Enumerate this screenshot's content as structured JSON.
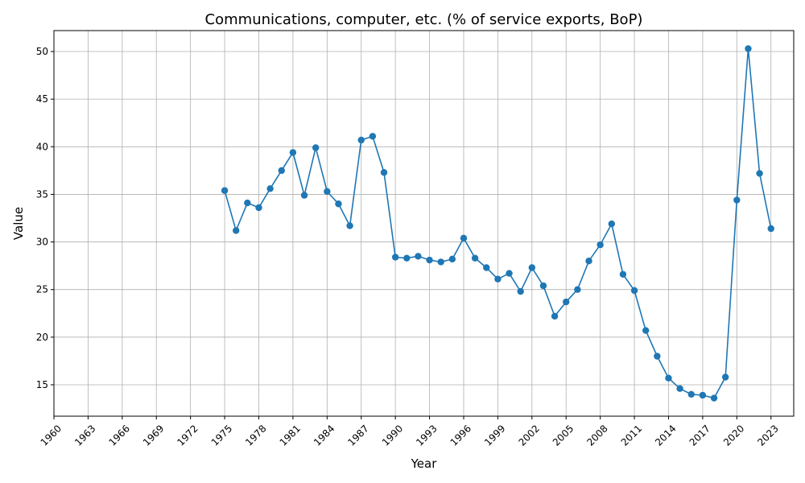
{
  "chart_data": {
    "type": "line",
    "title": "Communications, computer, etc. (% of service exports, BoP)",
    "xlabel": "Year",
    "ylabel": "Value",
    "xlim": [
      1960,
      2025
    ],
    "ylim": [
      11.7,
      52.2
    ],
    "x_ticks": [
      "1960",
      "1963",
      "1966",
      "1969",
      "1972",
      "1975",
      "1978",
      "1981",
      "1984",
      "1987",
      "1990",
      "1993",
      "1996",
      "1999",
      "2002",
      "2005",
      "2008",
      "2011",
      "2014",
      "2017",
      "2020",
      "2023"
    ],
    "y_ticks": [
      "15",
      "20",
      "25",
      "30",
      "35",
      "40",
      "45",
      "50"
    ],
    "grid": true,
    "color": "#1f77b4",
    "marker": "circle",
    "series": [
      {
        "x": [
          1975,
          1976,
          1977,
          1978,
          1979,
          1980,
          1981,
          1982,
          1983,
          1984,
          1985,
          1986,
          1987,
          1988,
          1989,
          1990,
          1991,
          1992,
          1993,
          1994,
          1995,
          1996,
          1997,
          1998,
          1999,
          2000,
          2001,
          2002,
          2003,
          2004,
          2005,
          2006,
          2007,
          2008,
          2009,
          2010,
          2011,
          2012,
          2013,
          2014,
          2015,
          2016,
          2017,
          2018,
          2019,
          2020,
          2021,
          2022,
          2023
        ],
        "values": [
          35.4,
          31.2,
          34.1,
          33.6,
          35.6,
          37.5,
          39.4,
          34.9,
          39.9,
          35.3,
          34.0,
          31.7,
          40.7,
          41.1,
          37.3,
          28.4,
          28.3,
          28.5,
          28.1,
          27.9,
          28.2,
          30.4,
          28.3,
          27.3,
          26.1,
          26.7,
          24.8,
          27.3,
          25.4,
          22.2,
          23.7,
          25.0,
          28.0,
          29.7,
          31.9,
          26.6,
          24.9,
          20.7,
          18.0,
          15.7,
          14.6,
          14.0,
          13.9,
          13.6,
          15.8,
          34.4,
          50.3,
          37.2,
          31.4
        ]
      }
    ]
  }
}
